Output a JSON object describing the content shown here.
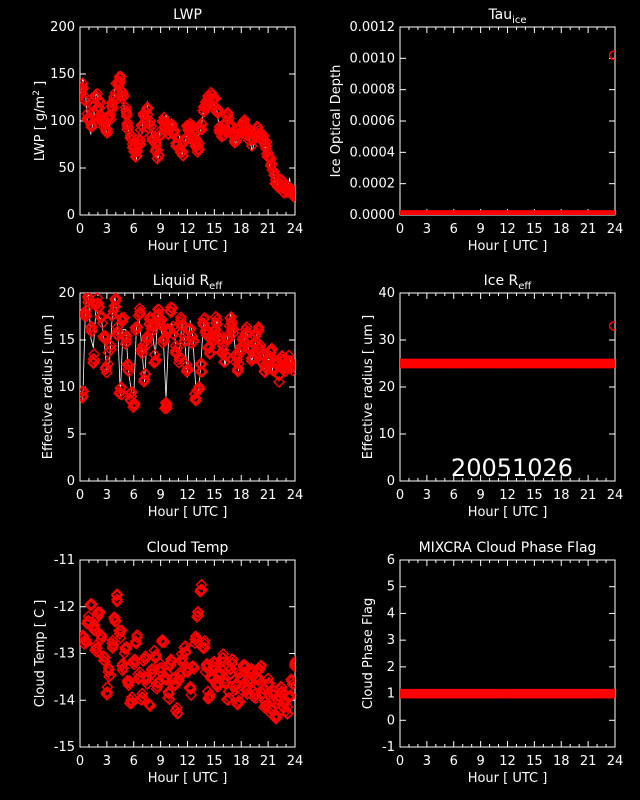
{
  "colors": {
    "background": "#000000",
    "axes": "#ffffff",
    "marker": "#ff0000",
    "line": "#ffffff"
  },
  "chart_data": [
    {
      "id": "lwp",
      "type": "scatter",
      "title": "LWP",
      "ylabel": "LWP [ g/m",
      "ylabel_sup": "2",
      "ylabel_end": " ]",
      "xlabel": "Hour [ UTC ]",
      "xlim": [
        0,
        24
      ],
      "ylim": [
        0,
        200
      ],
      "x_ticks": [
        0,
        3,
        6,
        9,
        12,
        15,
        18,
        21,
        24
      ],
      "y_ticks": [
        0,
        50,
        100,
        150,
        200
      ],
      "y_tick_labels": [
        "0",
        "50",
        "100",
        "150",
        "200"
      ],
      "marker": "diamond",
      "white_trace": true,
      "series": [
        {
          "x": [
            0.0,
            0.3,
            0.6,
            0.9,
            1.2,
            1.5,
            1.8,
            2.1,
            2.4,
            2.7,
            3.0,
            3.3,
            3.6,
            3.9,
            4.2,
            4.5,
            4.8,
            5.1,
            5.4,
            5.7,
            6.0,
            6.3,
            6.6,
            6.9,
            7.2,
            7.5,
            7.8,
            8.1,
            8.4,
            8.7,
            9.0,
            9.3,
            9.6,
            9.9,
            10.2,
            10.5,
            10.8,
            11.1,
            11.4,
            11.7,
            12.0,
            12.3,
            12.6,
            12.9,
            13.2,
            13.5,
            13.8,
            14.1,
            14.4,
            14.7,
            15.0,
            15.3,
            15.6,
            15.9,
            16.2,
            16.5,
            16.8,
            17.1,
            17.4,
            17.7,
            18.0,
            18.3,
            18.6,
            18.9,
            19.2,
            19.5,
            19.8,
            20.1,
            20.4,
            20.7,
            21.0,
            21.3,
            21.6,
            21.9,
            22.2,
            22.5,
            22.8,
            23.1,
            23.4,
            23.7,
            24.0
          ],
          "y": [
            130,
            138,
            120,
            105,
            98,
            112,
            125,
            118,
            104,
            96,
            88,
            102,
            115,
            126,
            140,
            145,
            128,
            110,
            96,
            82,
            72,
            66,
            76,
            92,
            104,
            110,
            96,
            80,
            72,
            64,
            88,
            102,
            95,
            88,
            92,
            86,
            78,
            74,
            68,
            82,
            90,
            96,
            84,
            76,
            72,
            95,
            112,
            118,
            123,
            126,
            120,
            108,
            92,
            86,
            94,
            104,
            96,
            88,
            80,
            86,
            92,
            98,
            92,
            84,
            78,
            86,
            90,
            86,
            80,
            74,
            64,
            56,
            44,
            36,
            32,
            34,
            28,
            26,
            30,
            24,
            22
          ]
        }
      ]
    },
    {
      "id": "tau_ice",
      "type": "scatter",
      "title": "Tau",
      "title_sub": "ice",
      "ylabel": "Ice Optical Depth",
      "xlabel": "Hour [ UTC ]",
      "xlim": [
        0,
        24
      ],
      "ylim": [
        0,
        0.0012
      ],
      "x_ticks": [
        0,
        3,
        6,
        9,
        12,
        15,
        18,
        21,
        24
      ],
      "y_ticks": [
        0,
        0.0002,
        0.0004,
        0.0006,
        0.0008,
        0.001,
        0.0012
      ],
      "y_tick_labels": [
        "0.0000",
        "0.0002",
        "0.0004",
        "0.0006",
        "0.0008",
        "0.0010",
        "0.0012"
      ],
      "marker": "circle",
      "series": [
        {
          "x_range": [
            0,
            23.8
          ],
          "y_const": 0,
          "extra_points": [
            {
              "x": 23.85,
              "y": 0.00102
            }
          ]
        }
      ]
    },
    {
      "id": "liquid_reff",
      "type": "scatter",
      "title": "Liquid R",
      "title_sub": "eff",
      "ylabel": "Effective radius [ um ]",
      "xlabel": "Hour [ UTC ]",
      "xlim": [
        0,
        24
      ],
      "ylim": [
        0,
        20
      ],
      "x_ticks": [
        0,
        3,
        6,
        9,
        12,
        15,
        18,
        21,
        24
      ],
      "y_ticks": [
        0,
        5,
        10,
        15,
        20
      ],
      "y_tick_labels": [
        "0",
        "5",
        "10",
        "15",
        "20"
      ],
      "marker": "diamond",
      "white_trace": true,
      "series": [
        {
          "x": [
            0.3,
            0.6,
            0.9,
            1.2,
            1.5,
            1.8,
            2.1,
            2.4,
            2.7,
            3.0,
            3.3,
            3.6,
            3.9,
            4.2,
            4.5,
            4.8,
            5.1,
            5.4,
            5.7,
            6.0,
            6.3,
            6.6,
            6.9,
            7.2,
            7.5,
            7.8,
            8.1,
            8.4,
            8.7,
            9.0,
            9.3,
            9.6,
            9.9,
            10.2,
            10.5,
            10.8,
            11.1,
            11.4,
            11.7,
            12.0,
            12.3,
            12.6,
            12.9,
            13.2,
            13.5,
            13.8,
            14.1,
            14.4,
            14.7,
            15.0,
            15.3,
            15.6,
            15.9,
            16.2,
            16.5,
            16.8,
            17.1,
            17.4,
            17.7,
            18.0,
            18.3,
            18.6,
            18.9,
            19.2,
            19.5,
            19.8,
            20.1,
            20.4,
            20.7,
            21.0,
            21.3,
            21.6,
            21.9,
            22.2,
            22.5,
            22.8,
            23.1,
            23.4,
            23.7
          ],
          "y": [
            9.2,
            18,
            19.5,
            16,
            13,
            19,
            18.5,
            17,
            15,
            12,
            14,
            18,
            19,
            16,
            9.5,
            17,
            15,
            12,
            9,
            8,
            16,
            18,
            14,
            11,
            15,
            17,
            16,
            13,
            18,
            17,
            15,
            8,
            16,
            18,
            16,
            14,
            13,
            17,
            15,
            12,
            16,
            15,
            9,
            10,
            12,
            17,
            16,
            14,
            15,
            16,
            17,
            15,
            14,
            13,
            15,
            17,
            16,
            13,
            12,
            14,
            15,
            16,
            14,
            13,
            15,
            16,
            14,
            13,
            12,
            13,
            14,
            12,
            12.5,
            11,
            13,
            12,
            12.5,
            13,
            12
          ]
        }
      ]
    },
    {
      "id": "ice_reff",
      "type": "scatter",
      "title": "Ice R",
      "title_sub": "eff",
      "ylabel": "Effective radius [ um ]",
      "xlabel": "Hour [ UTC ]",
      "xlim": [
        0,
        24
      ],
      "ylim": [
        0,
        40
      ],
      "x_ticks": [
        0,
        3,
        6,
        9,
        12,
        15,
        18,
        21,
        24
      ],
      "y_ticks": [
        0,
        10,
        20,
        30,
        40
      ],
      "y_tick_labels": [
        "0",
        "10",
        "20",
        "30",
        "40"
      ],
      "marker": "circle",
      "annotation": "20051026",
      "series": [
        {
          "x_range": [
            0,
            23.8
          ],
          "y_const": 25,
          "extra_points": [
            {
              "x": 23.85,
              "y": 33
            }
          ]
        }
      ]
    },
    {
      "id": "cloud_temp",
      "type": "scatter",
      "title": "Cloud Temp",
      "ylabel": "Cloud Temp [ C ]",
      "xlabel": "Hour [ UTC ]",
      "xlim": [
        0,
        24
      ],
      "ylim": [
        -15,
        -11
      ],
      "x_ticks": [
        0,
        3,
        6,
        9,
        12,
        15,
        18,
        21,
        24
      ],
      "y_ticks": [
        -15,
        -14,
        -13,
        -12,
        -11
      ],
      "y_tick_labels": [
        "-15",
        "-14",
        "-13",
        "-12",
        "-11"
      ],
      "marker": "diamond",
      "series": [
        {
          "x": [
            0.3,
            0.6,
            0.9,
            1.2,
            1.5,
            1.8,
            2.1,
            2.4,
            2.7,
            3.0,
            3.3,
            3.6,
            3.9,
            4.2,
            4.5,
            4.8,
            5.1,
            5.4,
            5.7,
            6.0,
            6.3,
            6.6,
            6.9,
            7.2,
            7.5,
            7.8,
            8.1,
            8.4,
            8.7,
            9.0,
            9.3,
            9.6,
            9.9,
            10.2,
            10.5,
            10.8,
            11.1,
            11.4,
            11.7,
            12.0,
            12.3,
            12.6,
            12.9,
            13.2,
            13.5,
            13.8,
            14.1,
            14.4,
            14.7,
            15.0,
            15.3,
            15.6,
            15.9,
            16.2,
            16.5,
            16.8,
            17.1,
            17.4,
            17.7,
            18.0,
            18.3,
            18.6,
            18.9,
            19.2,
            19.5,
            19.8,
            20.1,
            20.4,
            20.7,
            21.0,
            21.3,
            21.6,
            21.9,
            22.2,
            22.5,
            22.8,
            23.1,
            23.4,
            23.7,
            24.0
          ],
          "y": [
            -12.6,
            -12.8,
            -12.3,
            -12.0,
            -12.5,
            -12.9,
            -12.2,
            -12.6,
            -13.1,
            -13.8,
            -13.4,
            -12.8,
            -12.3,
            -11.8,
            -12.6,
            -13.3,
            -12.9,
            -13.6,
            -14.0,
            -13.2,
            -12.7,
            -13.5,
            -13.9,
            -13.1,
            -13.6,
            -14.1,
            -13.4,
            -13.0,
            -13.7,
            -13.3,
            -12.8,
            -13.5,
            -13.9,
            -13.2,
            -13.6,
            -14.2,
            -13.5,
            -13.1,
            -12.9,
            -13.4,
            -13.8,
            -13.3,
            -12.7,
            -12.2,
            -11.6,
            -12.8,
            -13.3,
            -13.9,
            -13.5,
            -13.2,
            -13.7,
            -13.4,
            -13.1,
            -13.6,
            -13.9,
            -13.4,
            -13.2,
            -13.7,
            -14.0,
            -13.5,
            -13.3,
            -13.8,
            -13.6,
            -13.4,
            -13.9,
            -13.5,
            -13.3,
            -13.8,
            -14.1,
            -13.6,
            -14.2,
            -13.9,
            -14.3,
            -14.0,
            -13.8,
            -14.1,
            -14.2,
            -13.9,
            -13.6,
            -13.2
          ]
        }
      ]
    },
    {
      "id": "phase_flag",
      "type": "scatter",
      "title": "MIXCRA Cloud Phase Flag",
      "ylabel": "Cloud Phase Flag",
      "xlabel": "Hour [ UTC ]",
      "xlim": [
        0,
        24
      ],
      "ylim": [
        -1,
        6
      ],
      "x_ticks": [
        0,
        3,
        6,
        9,
        12,
        15,
        18,
        21,
        24
      ],
      "y_ticks": [
        -1,
        0,
        1,
        2,
        3,
        4,
        5,
        6
      ],
      "y_tick_labels": [
        "-1",
        "0",
        "1",
        "2",
        "3",
        "4",
        "5",
        "6"
      ],
      "marker": "circle",
      "series": [
        {
          "x_range": [
            0,
            24
          ],
          "y_const": 1,
          "extra_points": []
        }
      ]
    }
  ]
}
